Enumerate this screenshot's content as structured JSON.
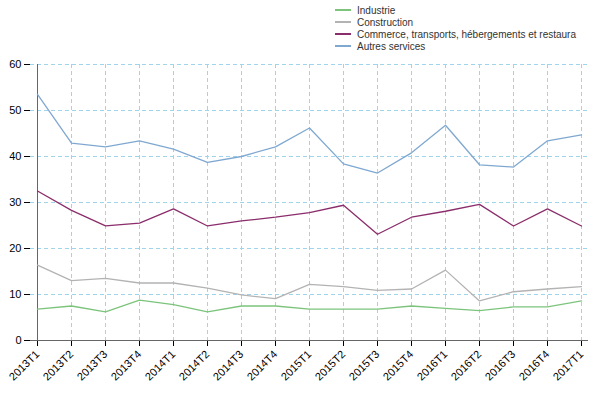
{
  "chart_data": {
    "type": "line",
    "categories": [
      "2013T1",
      "2013T2",
      "2013T3",
      "2013T4",
      "2014T1",
      "2014T2",
      "2014T3",
      "2014T4",
      "2015T1",
      "2015T2",
      "2015T3",
      "2015T4",
      "2016T1",
      "2016T2",
      "2016T3",
      "2016T4",
      "2017T1"
    ],
    "series": [
      {
        "name": "Industrie",
        "color": "#7cc47c",
        "values": [
          6.8,
          7.5,
          6.2,
          8.8,
          7.8,
          6.2,
          7.5,
          7.5,
          6.8,
          6.8,
          6.8,
          7.5,
          7.0,
          6.5,
          7.3,
          7.3,
          8.6
        ]
      },
      {
        "name": "Construction",
        "color": "#b3b3b3",
        "values": [
          16.4,
          13.0,
          13.5,
          12.5,
          12.5,
          11.4,
          9.9,
          9.1,
          12.2,
          11.7,
          10.9,
          11.2,
          15.3,
          8.6,
          10.6,
          11.2,
          11.7
        ]
      },
      {
        "name": "Commerce, transports, hébergements et restaura",
        "color": "#8b2d6b",
        "values": [
          32.5,
          28.3,
          24.9,
          25.5,
          28.6,
          24.9,
          26.0,
          26.8,
          27.8,
          29.4,
          23.1,
          26.8,
          28.1,
          29.6,
          24.9,
          28.6,
          24.9
        ]
      },
      {
        "name": "Autres services",
        "color": "#7fa8d1",
        "values": [
          53.5,
          42.9,
          42.1,
          43.4,
          41.6,
          38.7,
          40.0,
          42.1,
          46.2,
          38.4,
          36.4,
          40.8,
          46.8,
          38.2,
          37.7,
          43.4,
          44.7
        ]
      }
    ],
    "ylim": [
      0,
      60
    ],
    "yticks": [
      0,
      10,
      20,
      30,
      40,
      50,
      60
    ],
    "grid": true
  }
}
